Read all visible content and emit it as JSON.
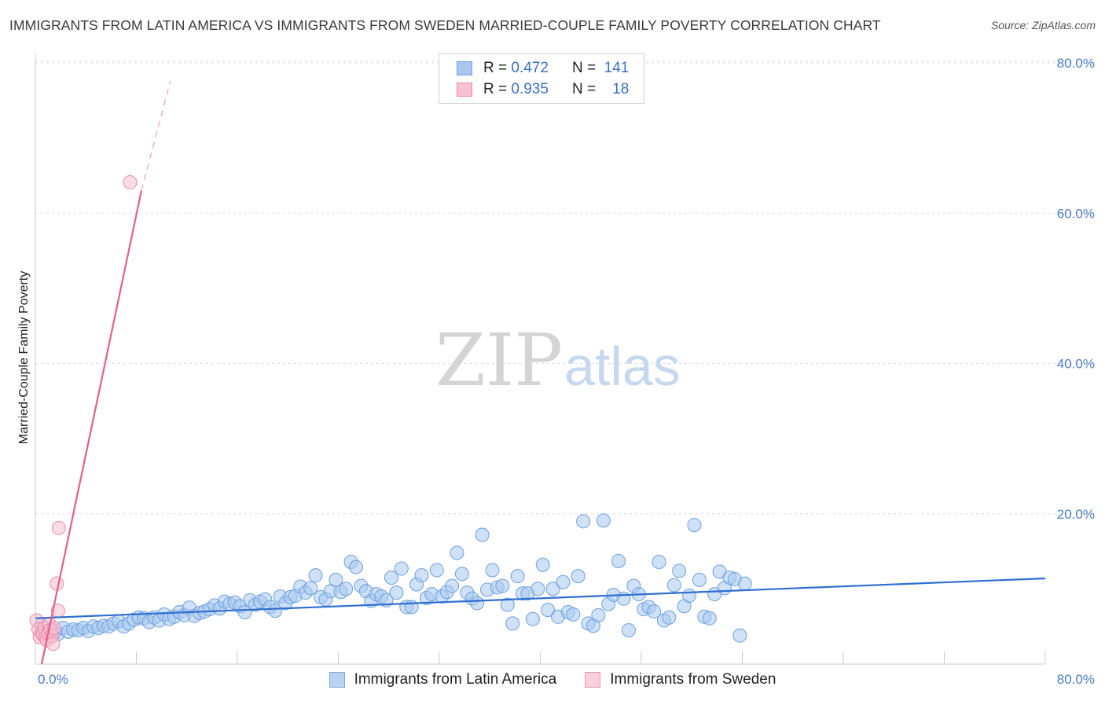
{
  "header": {
    "title": "IMMIGRANTS FROM LATIN AMERICA VS IMMIGRANTS FROM SWEDEN MARRIED-COUPLE FAMILY POVERTY CORRELATION CHART",
    "source": "Source: ZipAtlas.com"
  },
  "watermark": {
    "zip": "ZIP",
    "atlas": "atlas"
  },
  "stats": {
    "rows": [
      {
        "r_label": "R =",
        "r_value": "0.472",
        "n_label": "N =",
        "n_value": "141",
        "color": "#a8c8f0",
        "border": "#6d9fdc"
      },
      {
        "r_label": "R =",
        "r_value": "0.935",
        "n_label": "N =",
        "n_value": "18",
        "color": "#f8c0d0",
        "border": "#e88aa6"
      }
    ]
  },
  "legend": {
    "items": [
      {
        "label": "Immigrants from Latin America",
        "color": "#b8d2f3",
        "border": "#7ea8dd"
      },
      {
        "label": "Immigrants from Sweden",
        "color": "#fbd0dc",
        "border": "#e994ad"
      }
    ]
  },
  "chart_data": {
    "type": "scatter",
    "title": "IMMIGRANTS FROM LATIN AMERICA VS IMMIGRANTS FROM SWEDEN MARRIED-COUPLE FAMILY POVERTY CORRELATION CHART",
    "xlabel": "",
    "ylabel": "Married-Couple Family Poverty",
    "xlim": [
      0,
      80
    ],
    "ylim": [
      0,
      80
    ],
    "x_tick_labels": [
      "0.0%",
      "80.0%"
    ],
    "y_tick_labels": [
      "20.0%",
      "40.0%",
      "60.0%",
      "80.0%"
    ],
    "y_ticks": [
      20,
      40,
      60,
      80
    ],
    "grid": true,
    "legend_position": "bottom",
    "series": [
      {
        "name": "Immigrants from Latin America",
        "color": "#a8c8f0",
        "edge": "#6d9fdc",
        "line_color": "#2f6fd0",
        "trend": {
          "x0": 0,
          "y0": 6.1,
          "x1": 80,
          "y1": 11.4,
          "dashed_to": null
        },
        "points": [
          [
            0.5,
            5.2
          ],
          [
            0.8,
            4.4
          ],
          [
            1.2,
            4.6
          ],
          [
            1.5,
            4.2
          ],
          [
            1.8,
            4.0
          ],
          [
            2.2,
            4.8
          ],
          [
            2.6,
            4.3
          ],
          [
            3.0,
            4.6
          ],
          [
            3.4,
            4.5
          ],
          [
            3.8,
            4.8
          ],
          [
            4.2,
            4.4
          ],
          [
            4.6,
            5.0
          ],
          [
            5.0,
            4.8
          ],
          [
            5.4,
            5.1
          ],
          [
            5.8,
            5.0
          ],
          [
            6.2,
            5.4
          ],
          [
            6.6,
            5.7
          ],
          [
            7.0,
            5.0
          ],
          [
            7.4,
            5.4
          ],
          [
            7.8,
            5.9
          ],
          [
            8.2,
            6.2
          ],
          [
            8.6,
            6.1
          ],
          [
            9.0,
            5.6
          ],
          [
            9.4,
            6.2
          ],
          [
            9.8,
            5.8
          ],
          [
            10.2,
            6.6
          ],
          [
            10.6,
            6.0
          ],
          [
            11.0,
            6.3
          ],
          [
            11.4,
            6.9
          ],
          [
            11.8,
            6.5
          ],
          [
            12.2,
            7.5
          ],
          [
            12.6,
            6.4
          ],
          [
            13.0,
            6.8
          ],
          [
            13.4,
            7.0
          ],
          [
            13.8,
            7.3
          ],
          [
            14.2,
            7.8
          ],
          [
            14.6,
            7.4
          ],
          [
            15.0,
            8.3
          ],
          [
            15.4,
            8.0
          ],
          [
            15.8,
            8.2
          ],
          [
            16.2,
            7.7
          ],
          [
            16.6,
            6.9
          ],
          [
            17.0,
            8.5
          ],
          [
            17.4,
            7.9
          ],
          [
            17.8,
            8.3
          ],
          [
            18.2,
            8.6
          ],
          [
            18.6,
            7.6
          ],
          [
            19.0,
            7.1
          ],
          [
            19.4,
            9.0
          ],
          [
            19.8,
            8.1
          ],
          [
            20.2,
            8.9
          ],
          [
            20.6,
            9.1
          ],
          [
            21.0,
            10.3
          ],
          [
            21.4,
            9.5
          ],
          [
            21.8,
            10.1
          ],
          [
            22.2,
            11.8
          ],
          [
            22.6,
            8.9
          ],
          [
            23.0,
            8.6
          ],
          [
            23.4,
            9.7
          ],
          [
            23.8,
            11.2
          ],
          [
            24.2,
            9.6
          ],
          [
            24.6,
            10.0
          ],
          [
            25.0,
            13.6
          ],
          [
            25.4,
            12.9
          ],
          [
            25.8,
            10.4
          ],
          [
            26.2,
            9.7
          ],
          [
            26.6,
            8.4
          ],
          [
            27.0,
            9.3
          ],
          [
            27.4,
            9.0
          ],
          [
            27.8,
            8.5
          ],
          [
            28.2,
            11.5
          ],
          [
            28.6,
            9.5
          ],
          [
            29.0,
            12.7
          ],
          [
            29.4,
            7.6
          ],
          [
            29.8,
            7.6
          ],
          [
            30.2,
            10.6
          ],
          [
            30.6,
            11.8
          ],
          [
            31.0,
            8.8
          ],
          [
            31.4,
            9.3
          ],
          [
            31.8,
            12.5
          ],
          [
            32.2,
            9.0
          ],
          [
            32.6,
            9.6
          ],
          [
            33.0,
            10.4
          ],
          [
            33.4,
            14.8
          ],
          [
            33.8,
            12.0
          ],
          [
            34.2,
            9.5
          ],
          [
            34.6,
            8.7
          ],
          [
            35.0,
            8.1
          ],
          [
            35.4,
            17.2
          ],
          [
            35.8,
            9.9
          ],
          [
            36.2,
            12.5
          ],
          [
            36.6,
            10.2
          ],
          [
            37.0,
            10.4
          ],
          [
            37.4,
            7.9
          ],
          [
            37.8,
            5.4
          ],
          [
            38.2,
            11.7
          ],
          [
            38.6,
            9.4
          ],
          [
            39.0,
            9.4
          ],
          [
            39.4,
            6.0
          ],
          [
            39.8,
            10.0
          ],
          [
            40.2,
            13.2
          ],
          [
            40.6,
            7.2
          ],
          [
            41.0,
            10.0
          ],
          [
            41.4,
            6.3
          ],
          [
            41.8,
            10.9
          ],
          [
            42.2,
            6.9
          ],
          [
            42.6,
            6.6
          ],
          [
            43.0,
            11.7
          ],
          [
            43.4,
            19.0
          ],
          [
            43.8,
            5.4
          ],
          [
            44.2,
            5.1
          ],
          [
            44.6,
            6.5
          ],
          [
            45.0,
            19.1
          ],
          [
            45.4,
            8.0
          ],
          [
            45.8,
            9.2
          ],
          [
            46.2,
            13.7
          ],
          [
            46.6,
            8.7
          ],
          [
            47.0,
            4.5
          ],
          [
            47.4,
            10.4
          ],
          [
            47.8,
            9.3
          ],
          [
            48.2,
            7.3
          ],
          [
            48.6,
            7.6
          ],
          [
            49.0,
            7.0
          ],
          [
            49.4,
            13.6
          ],
          [
            49.8,
            5.8
          ],
          [
            50.2,
            6.2
          ],
          [
            50.6,
            10.5
          ],
          [
            51.0,
            12.4
          ],
          [
            51.4,
            7.7
          ],
          [
            51.8,
            9.1
          ],
          [
            52.2,
            18.5
          ],
          [
            52.6,
            11.2
          ],
          [
            53.0,
            6.3
          ],
          [
            53.4,
            6.1
          ],
          [
            53.8,
            9.3
          ],
          [
            54.2,
            12.3
          ],
          [
            54.6,
            10.1
          ],
          [
            55.0,
            11.5
          ],
          [
            55.4,
            11.3
          ],
          [
            55.8,
            3.8
          ],
          [
            56.2,
            10.7
          ]
        ]
      },
      {
        "name": "Immigrants from Sweden",
        "color": "#f8c0d0",
        "edge": "#e88aa6",
        "line_color": "#e2608a",
        "trend": {
          "x0": 0.5,
          "y0": 0,
          "x1": 8.4,
          "y1": 63,
          "dashed_to": {
            "x": 10.7,
            "y": 77.6
          }
        },
        "points": [
          [
            0.1,
            5.8
          ],
          [
            0.25,
            4.6
          ],
          [
            0.35,
            3.6
          ],
          [
            0.5,
            4.2
          ],
          [
            0.6,
            3.9
          ],
          [
            0.7,
            4.8
          ],
          [
            0.8,
            3.5
          ],
          [
            0.9,
            3.2
          ],
          [
            1.0,
            4.1
          ],
          [
            1.1,
            5.3
          ],
          [
            1.2,
            4.5
          ],
          [
            1.3,
            3.7
          ],
          [
            1.4,
            2.7
          ],
          [
            1.5,
            4.8
          ],
          [
            1.7,
            10.7
          ],
          [
            1.8,
            7.1
          ],
          [
            1.85,
            18.1
          ],
          [
            7.5,
            64.1
          ]
        ]
      }
    ]
  }
}
